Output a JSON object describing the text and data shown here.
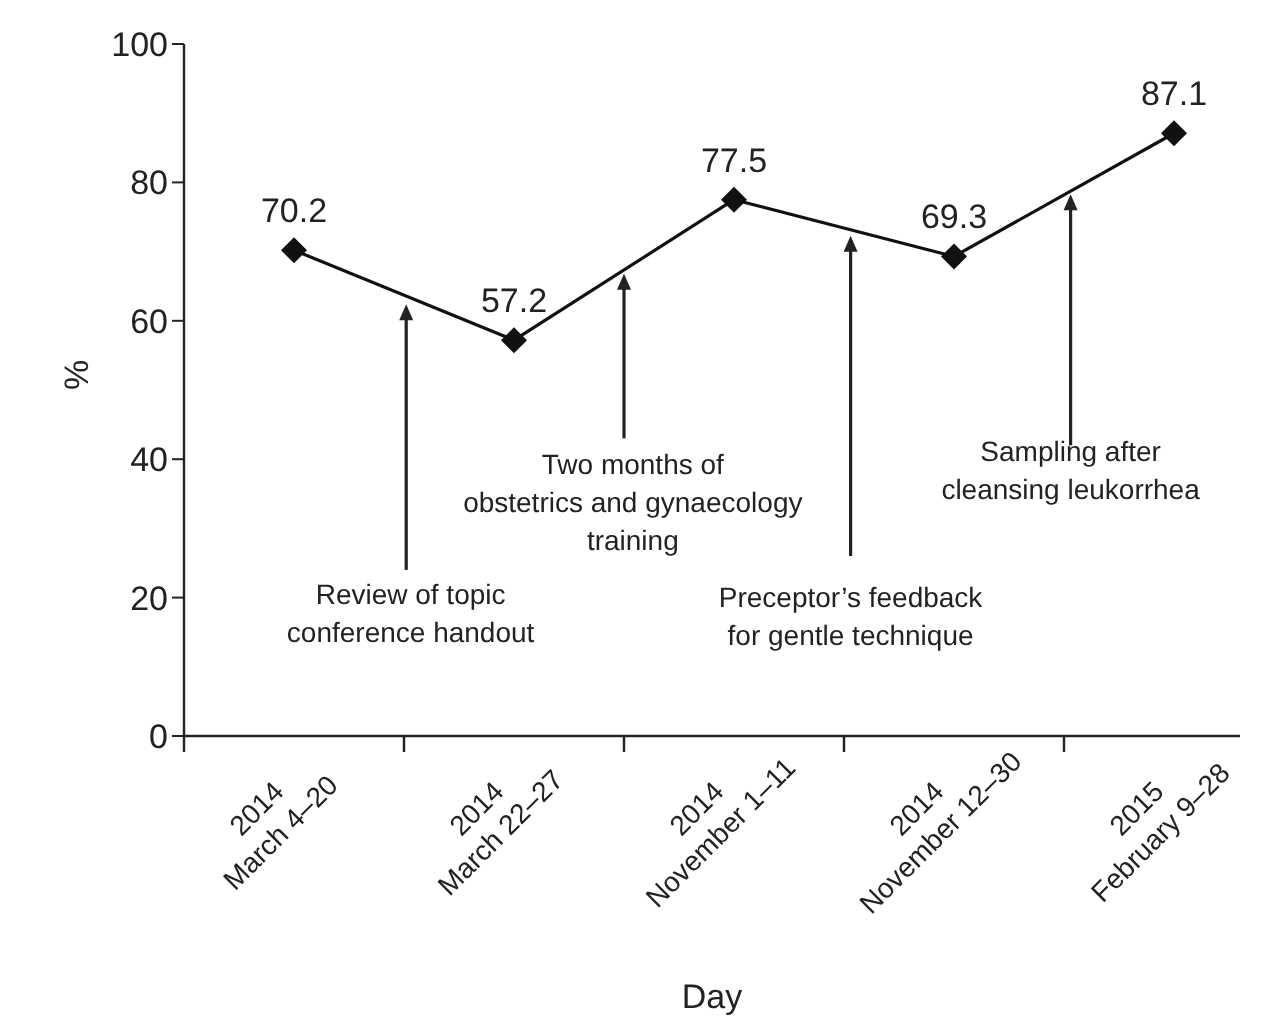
{
  "chart_data": {
    "type": "line",
    "xlabel": "Day",
    "ylabel": "%",
    "categories": [
      "2014\nMarch 4–20",
      "2014\nMarch 22–27",
      "2014\nNovember 1–11",
      "2014\nNovember 12–30",
      "2015\nFebruary 9–28"
    ],
    "series": [
      {
        "color": "#111111",
        "values": [
          70.2,
          57.2,
          77.5,
          69.3,
          87.1
        ]
      }
    ],
    "ylim": [
      0,
      100
    ],
    "yticks": [
      0,
      20,
      40,
      60,
      80,
      100
    ],
    "grid": false,
    "legend": false,
    "marker": "diamond",
    "line_style": "solid",
    "data_labels": true,
    "annotations": [
      "Review of topic\nconference handout",
      "Two months of\nobstetrics and gynaecology\ntraining",
      "Preceptor’s feedback\nfor gentle technique",
      "Sampling after\ncleansing leukorrhea"
    ]
  }
}
